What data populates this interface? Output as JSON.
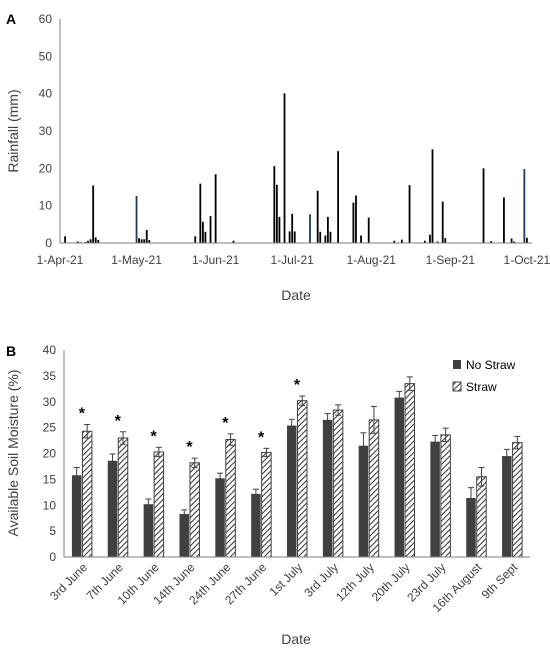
{
  "chart_data": [
    {
      "panel": "A",
      "type": "bar",
      "xlabel": "Date",
      "ylabel": "Rainfall (mm)",
      "ylim": [
        0,
        60
      ],
      "yticks": [
        0,
        10,
        20,
        30,
        40,
        50,
        60
      ],
      "xlim": [
        "2021-04-01",
        "2021-10-03"
      ],
      "xticks": [
        {
          "date": "2021-04-01",
          "label": "1-Apr-21"
        },
        {
          "date": "2021-05-01",
          "label": "1-May-21"
        },
        {
          "date": "2021-06-01",
          "label": "1-Jun-21"
        },
        {
          "date": "2021-07-01",
          "label": "1-Jul-21"
        },
        {
          "date": "2021-08-01",
          "label": "1-Aug-21"
        },
        {
          "date": "2021-09-01",
          "label": "1-Sep-21"
        },
        {
          "date": "2021-10-01",
          "label": "1-Oct-21"
        }
      ],
      "grid": false,
      "series": [
        {
          "color": "#000000",
          "points": [
            {
              "date": "2021-04-03",
              "value": 1.8
            },
            {
              "date": "2021-04-08",
              "value": 0.4
            },
            {
              "date": "2021-04-09",
              "value": 0.2
            },
            {
              "date": "2021-04-11",
              "value": 0.3
            },
            {
              "date": "2021-04-12",
              "value": 0.6
            },
            {
              "date": "2021-04-13",
              "value": 1.0
            },
            {
              "date": "2021-04-14",
              "value": 15.4
            },
            {
              "date": "2021-04-15",
              "value": 1.5
            },
            {
              "date": "2021-04-16",
              "value": 0.8
            },
            {
              "date": "2021-05-02",
              "value": 1.3
            },
            {
              "date": "2021-05-03",
              "value": 1.0
            },
            {
              "date": "2021-05-04",
              "value": 1.0
            },
            {
              "date": "2021-05-05",
              "value": 3.5
            },
            {
              "date": "2021-05-06",
              "value": 0.8
            },
            {
              "date": "2021-05-24",
              "value": 1.8
            },
            {
              "date": "2021-05-26",
              "value": 15.9
            },
            {
              "date": "2021-05-27",
              "value": 5.7
            },
            {
              "date": "2021-05-28",
              "value": 3.0
            },
            {
              "date": "2021-05-30",
              "value": 7.2
            },
            {
              "date": "2021-06-01",
              "value": 18.4
            },
            {
              "date": "2021-06-08",
              "value": 0.6
            },
            {
              "date": "2021-06-24",
              "value": 20.6
            },
            {
              "date": "2021-06-25",
              "value": 15.6
            },
            {
              "date": "2021-06-26",
              "value": 7.0
            },
            {
              "date": "2021-06-28",
              "value": 40.1
            },
            {
              "date": "2021-06-30",
              "value": 3.1
            },
            {
              "date": "2021-07-01",
              "value": 7.8
            },
            {
              "date": "2021-07-02",
              "value": 3.1
            },
            {
              "date": "2021-07-11",
              "value": 14.0
            },
            {
              "date": "2021-07-12",
              "value": 3.0
            },
            {
              "date": "2021-07-14",
              "value": 2.0
            },
            {
              "date": "2021-07-15",
              "value": 7.0
            },
            {
              "date": "2021-07-16",
              "value": 3.0
            },
            {
              "date": "2021-07-19",
              "value": 24.6
            },
            {
              "date": "2021-07-25",
              "value": 10.8
            },
            {
              "date": "2021-07-26",
              "value": 12.7
            },
            {
              "date": "2021-07-28",
              "value": 2.0
            },
            {
              "date": "2021-07-31",
              "value": 6.8
            },
            {
              "date": "2021-08-10",
              "value": 0.6
            },
            {
              "date": "2021-08-13",
              "value": 0.9
            },
            {
              "date": "2021-08-16",
              "value": 15.5
            },
            {
              "date": "2021-08-22",
              "value": 0.6
            },
            {
              "date": "2021-08-24",
              "value": 2.2
            },
            {
              "date": "2021-08-25",
              "value": 25.1
            },
            {
              "date": "2021-08-27",
              "value": 0.4
            },
            {
              "date": "2021-08-29",
              "value": 11.1
            },
            {
              "date": "2021-08-30",
              "value": 1.3
            },
            {
              "date": "2021-09-14",
              "value": 20.0
            },
            {
              "date": "2021-09-17",
              "value": 0.5
            },
            {
              "date": "2021-09-22",
              "value": 12.2
            },
            {
              "date": "2021-09-25",
              "value": 1.2
            },
            {
              "date": "2021-09-26",
              "value": 0.4
            },
            {
              "date": "2021-10-01",
              "value": 1.4
            }
          ]
        },
        {
          "color": "#1f3b5c",
          "points": [
            {
              "date": "2021-05-01",
              "value": 12.6
            },
            {
              "date": "2021-07-08",
              "value": 7.7
            },
            {
              "date": "2021-09-30",
              "value": 19.8
            }
          ]
        }
      ]
    },
    {
      "panel": "B",
      "type": "bar",
      "xlabel": "Date",
      "ylabel": "Available Soil Moisture (%)",
      "ylim": [
        0,
        40
      ],
      "yticks": [
        0,
        5,
        10,
        15,
        20,
        25,
        30,
        35,
        40
      ],
      "grid": false,
      "legend_position": "top-right",
      "categories": [
        "3rd June",
        "7th June",
        "10th June",
        "14th June",
        "24th June",
        "27th June",
        "1st July",
        "3rd July",
        "12th July",
        "20th July",
        "23rd July",
        "16th August",
        "9th Sept"
      ],
      "series": [
        {
          "name": "No Straw",
          "color": "#404040",
          "pattern": "solid",
          "values": [
            15.8,
            18.6,
            10.2,
            8.3,
            15.2,
            12.2,
            25.4,
            26.5,
            21.5,
            30.8,
            22.3,
            11.4,
            19.5
          ],
          "errors": [
            1.5,
            1.3,
            1.0,
            0.8,
            1.0,
            0.9,
            1.2,
            1.2,
            2.5,
            1.2,
            1.2,
            2.0,
            1.3
          ]
        },
        {
          "name": "Straw",
          "color": "#404040",
          "pattern": "diagonal-hatch",
          "values": [
            24.3,
            23.0,
            20.3,
            18.2,
            22.7,
            20.2,
            30.2,
            28.4,
            26.5,
            33.5,
            23.6,
            15.5,
            22.1
          ],
          "errors": [
            1.3,
            1.2,
            0.9,
            0.9,
            1.1,
            0.8,
            0.9,
            1.0,
            2.6,
            1.3,
            1.3,
            1.8,
            1.2
          ]
        }
      ],
      "significance_marker": "*",
      "significant_categories": [
        "3rd June",
        "7th June",
        "10th June",
        "14th June",
        "24th June",
        "27th June",
        "1st July"
      ]
    }
  ]
}
